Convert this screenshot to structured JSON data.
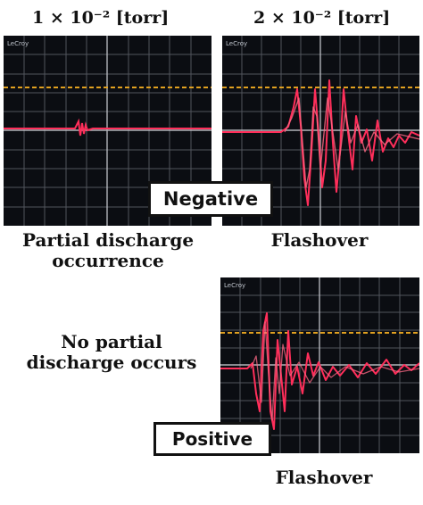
{
  "headers": {
    "left": "1 × 10⁻² [torr]",
    "right": "2 × 10⁻² [torr]"
  },
  "scope_brand": "LeCroy",
  "badges": {
    "negative": "Negative",
    "positive": "Positive"
  },
  "captions": {
    "partial_discharge": "Partial discharge occurrence",
    "flashover_top": "Flashover",
    "no_partial": "No partial discharge occurs",
    "flashover_bottom": "Flashover"
  },
  "colors": {
    "screen": "#0b0d12",
    "grid": "#9a9ea6",
    "reference": "#e0a020",
    "signal": "#ff2e5a"
  }
}
